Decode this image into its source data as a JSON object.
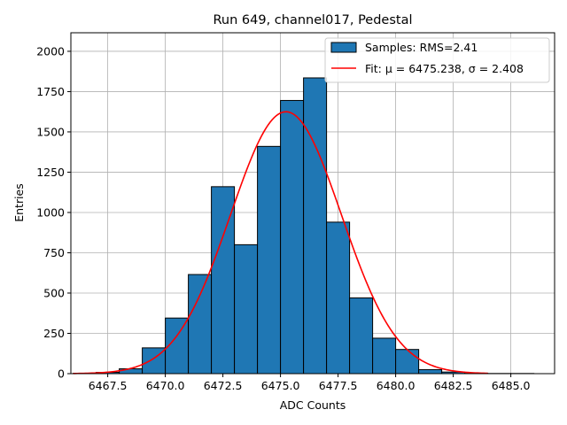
{
  "chart_data": {
    "type": "bar",
    "title": "Run 649, channel017, Pedestal",
    "xlabel": "ADC Counts",
    "ylabel": "Entries",
    "xlim": [
      6465.9,
      6486.9
    ],
    "ylim": [
      0,
      2115
    ],
    "xticks": [
      6467.5,
      6470.0,
      6472.5,
      6475.0,
      6477.5,
      6480.0,
      6482.5,
      6485.0
    ],
    "xtick_labels": [
      "6467.5",
      "6470.0",
      "6472.5",
      "6475.0",
      "6477.5",
      "6480.0",
      "6482.5",
      "6485.0"
    ],
    "yticks": [
      0,
      250,
      500,
      750,
      1000,
      1250,
      1500,
      1750,
      2000
    ],
    "ytick_labels": [
      "0",
      "250",
      "500",
      "750",
      "1000",
      "1250",
      "1500",
      "1750",
      "2000"
    ],
    "grid": true,
    "legend_position": "top-right",
    "histogram": {
      "name": "Samples: RMS=2.41",
      "color": "#1f77b4",
      "edge_color": "#000000",
      "bin_edges": [
        6466.0,
        6467.0,
        6468.0,
        6469.0,
        6470.0,
        6471.0,
        6472.0,
        6473.0,
        6474.0,
        6475.0,
        6476.0,
        6477.0,
        6478.0,
        6479.0,
        6480.0,
        6481.0,
        6482.0,
        6483.0,
        6484.0,
        6485.0,
        6486.0
      ],
      "counts": [
        2,
        8,
        30,
        160,
        345,
        615,
        1160,
        800,
        1410,
        1695,
        1835,
        940,
        470,
        220,
        150,
        25,
        10,
        2,
        1,
        1
      ]
    },
    "fit": {
      "name": "Fit: μ = 6475.238, σ = 2.408",
      "color": "#ff0000",
      "mu": 6475.238,
      "sigma": 2.408,
      "amplitude": 1625,
      "x_range": [
        6466.0,
        6484.0
      ]
    }
  }
}
